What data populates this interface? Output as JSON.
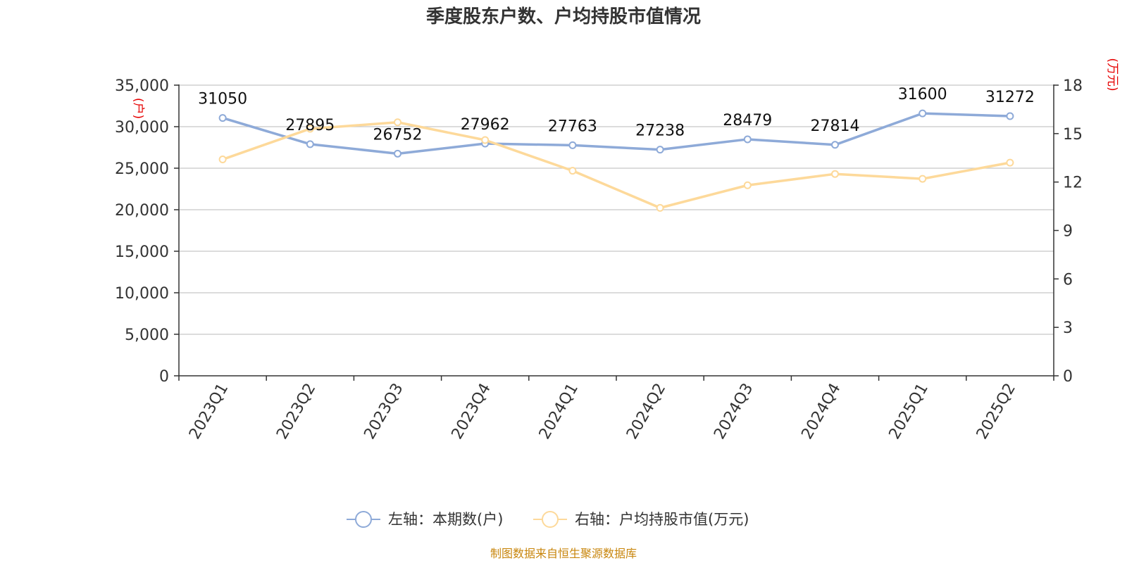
{
  "chart_data": {
    "type": "line",
    "title": "季度股东户数、户均持股市值情况",
    "categories": [
      "2023Q1",
      "2023Q2",
      "2023Q3",
      "2023Q4",
      "2024Q1",
      "2024Q2",
      "2024Q3",
      "2024Q4",
      "2025Q1",
      "2025Q2"
    ],
    "series": [
      {
        "name": "左轴：本期数(户)",
        "axis": "left",
        "color": "#8eaad8",
        "values": [
          31050,
          27895,
          26752,
          27962,
          27763,
          27238,
          28479,
          27814,
          31600,
          31272
        ],
        "data_labels": [
          "31050",
          "27895",
          "26752",
          "27962",
          "27763",
          "27238",
          "28479",
          "27814",
          "31600",
          "31272"
        ]
      },
      {
        "name": "右轴：户均持股市值(万元)",
        "axis": "right",
        "color": "#fdd99a",
        "values": [
          13.4,
          15.3,
          15.7,
          14.6,
          12.7,
          10.4,
          11.8,
          12.5,
          12.2,
          13.2
        ]
      }
    ],
    "y_left": {
      "unit": "(户)",
      "ylim": [
        0,
        35000
      ],
      "ticks": [
        0,
        5000,
        10000,
        15000,
        20000,
        25000,
        30000,
        35000
      ],
      "tick_labels": [
        "0",
        "5,000",
        "10,000",
        "15,000",
        "20,000",
        "25,000",
        "30,000",
        "35,000"
      ]
    },
    "y_right": {
      "unit": "(万元)",
      "ylim": [
        0,
        18
      ],
      "ticks": [
        0,
        3,
        6,
        9,
        12,
        15,
        18
      ],
      "tick_labels": [
        "0",
        "3",
        "6",
        "9",
        "12",
        "15",
        "18"
      ]
    },
    "grid": true,
    "legend_position": "bottom",
    "source": "制图数据来自恒生聚源数据库"
  }
}
